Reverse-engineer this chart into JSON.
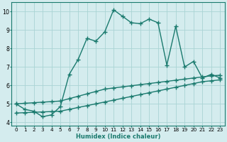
{
  "line1_x": [
    0,
    1,
    2,
    3,
    4,
    5,
    6,
    7,
    8,
    9,
    10,
    11,
    12,
    13,
    14,
    15,
    16,
    17,
    18,
    19,
    20,
    21,
    22,
    23
  ],
  "line1_y": [
    5.0,
    4.7,
    4.6,
    4.3,
    4.4,
    4.85,
    6.6,
    7.4,
    8.55,
    8.4,
    8.9,
    10.1,
    9.75,
    9.4,
    9.35,
    9.6,
    9.4,
    7.1,
    9.2,
    7.0,
    7.3,
    6.4,
    6.6,
    6.4
  ],
  "line2_x": [
    0,
    1,
    2,
    3,
    4,
    5,
    6,
    7,
    8,
    9,
    10,
    11,
    12,
    13,
    14,
    15,
    16,
    17,
    18,
    19,
    20,
    21,
    22,
    23
  ],
  "line2_y": [
    5.0,
    5.03,
    5.06,
    5.09,
    5.12,
    5.15,
    5.28,
    5.41,
    5.54,
    5.67,
    5.8,
    5.86,
    5.92,
    5.98,
    6.04,
    6.1,
    6.16,
    6.22,
    6.28,
    6.34,
    6.4,
    6.46,
    6.52,
    6.55
  ],
  "line3_x": [
    0,
    1,
    2,
    3,
    4,
    5,
    6,
    7,
    8,
    9,
    10,
    11,
    12,
    13,
    14,
    15,
    16,
    17,
    18,
    19,
    20,
    21,
    22,
    23
  ],
  "line3_y": [
    4.5,
    4.52,
    4.54,
    4.56,
    4.58,
    4.6,
    4.7,
    4.8,
    4.9,
    5.0,
    5.1,
    5.2,
    5.3,
    5.4,
    5.5,
    5.6,
    5.7,
    5.8,
    5.9,
    6.0,
    6.1,
    6.2,
    6.25,
    6.3
  ],
  "line_color": "#1a7a6e",
  "bg_color": "#d4ecee",
  "grid_color": "#aad4d4",
  "xlabel": "Humidex (Indice chaleur)",
  "xlim": [
    -0.5,
    23.5
  ],
  "ylim": [
    3.8,
    10.5
  ],
  "xticks": [
    0,
    1,
    2,
    3,
    4,
    5,
    6,
    7,
    8,
    9,
    10,
    11,
    12,
    13,
    14,
    15,
    16,
    17,
    18,
    19,
    20,
    21,
    22,
    23
  ],
  "yticks": [
    4,
    5,
    6,
    7,
    8,
    9,
    10
  ],
  "marker": "+",
  "markersize": 4,
  "linewidth": 1.0,
  "xlabel_color": "#1a7a6e",
  "xlabel_fontsize": 6.0,
  "tick_fontsize": 5.2
}
